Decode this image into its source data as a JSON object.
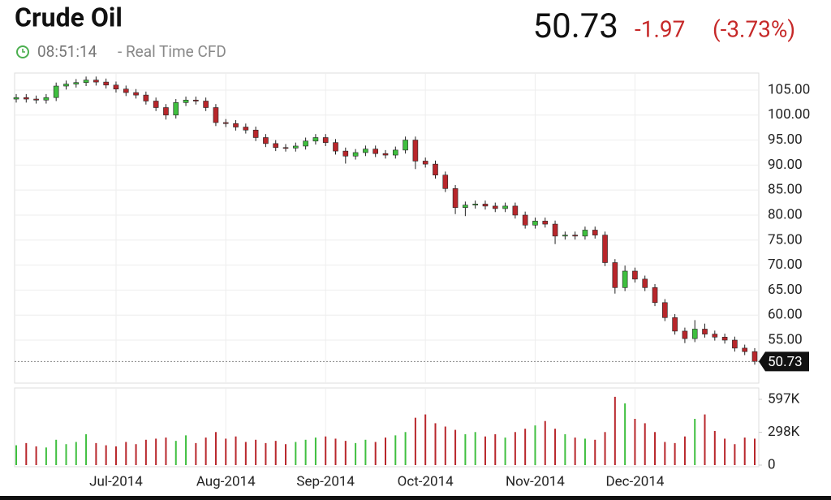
{
  "header": {
    "title": "Crude Oil",
    "time": "08:51:14",
    "source": "- Real Time CFD",
    "price": "50.73",
    "change": "-1.97",
    "change_pct": "(-3.73%)"
  },
  "chart_data": {
    "type": "candlestick",
    "categories": [
      null,
      null,
      null,
      null,
      null,
      null,
      null,
      null,
      null,
      null,
      "Jul-2014",
      null,
      null,
      null,
      null,
      null,
      null,
      null,
      null,
      null,
      null,
      "Aug-2014",
      null,
      null,
      null,
      null,
      null,
      null,
      null,
      null,
      null,
      "Sep-2014",
      null,
      null,
      null,
      null,
      null,
      null,
      null,
      null,
      null,
      "Oct-2014",
      null,
      null,
      null,
      null,
      null,
      null,
      null,
      null,
      null,
      null,
      "Nov-2014",
      null,
      null,
      null,
      null,
      null,
      null,
      null,
      null,
      null,
      "Dec-2014",
      null,
      null,
      null,
      null,
      null,
      null,
      null,
      null,
      null,
      null,
      null,
      null
    ],
    "open": [
      103.2,
      103.5,
      103.2,
      103,
      103.5,
      105.8,
      106.2,
      106.5,
      107,
      106.6,
      106,
      105.2,
      104.5,
      104,
      102.8,
      101.5,
      100,
      102.5,
      103,
      102.8,
      101.5,
      98.5,
      98.3,
      97.6,
      97,
      95.5,
      94.3,
      93.5,
      93.4,
      93.8,
      94.8,
      95.5,
      94.5,
      92.8,
      91.8,
      92.5,
      93.2,
      92.3,
      92,
      93,
      95,
      90.8,
      90.2,
      88,
      85.3,
      81.5,
      82,
      82.2,
      81.8,
      81.3,
      81.8,
      80,
      78,
      78.8,
      78.2,
      75.8,
      76,
      75.8,
      77,
      76,
      70.5,
      65.5,
      68.8,
      67.2,
      65.5,
      62.5,
      59.5,
      56.8,
      55.3,
      57.2,
      56.2,
      55.6,
      55,
      53.4,
      52.7
    ],
    "high": [
      104.2,
      104.2,
      103.9,
      104.2,
      106.5,
      106.9,
      107.2,
      107.7,
      107.7,
      107.3,
      106.7,
      105.9,
      105.2,
      104.7,
      103.5,
      102.2,
      103.2,
      103.7,
      103.7,
      103.5,
      102.2,
      99.2,
      99,
      98.3,
      97.7,
      96.2,
      95,
      94.2,
      94.5,
      95.5,
      96.2,
      96.2,
      95.2,
      93.5,
      93.2,
      93.9,
      93.9,
      93,
      93.7,
      95.7,
      95.7,
      91.5,
      90.9,
      88.7,
      86,
      82.7,
      82.9,
      82.9,
      82.5,
      82.5,
      82.5,
      80.7,
      79.5,
      79.5,
      78.9,
      76.7,
      76.7,
      77.7,
      77.7,
      76.7,
      71.2,
      69.9,
      69.5,
      67.9,
      66.2,
      63.2,
      60.2,
      57.5,
      59,
      58.3,
      56.9,
      56.3,
      55.7,
      54.1,
      53.4
    ],
    "low": [
      102.5,
      102.5,
      102.3,
      102.3,
      102.8,
      105.1,
      105.5,
      105.8,
      105.9,
      105.3,
      104.5,
      103.8,
      103.3,
      102.1,
      100.8,
      99.1,
      99.3,
      101.8,
      102.1,
      100.8,
      97.8,
      97.6,
      96.9,
      96.3,
      94.8,
      93.6,
      92.8,
      92.7,
      92.7,
      93.1,
      94.1,
      93.8,
      92.1,
      90.3,
      91.1,
      91.8,
      91.6,
      91.3,
      91.3,
      92.3,
      89.2,
      89.5,
      87.3,
      84.6,
      80.2,
      79.8,
      81.3,
      81.1,
      80.6,
      80.6,
      79.3,
      77.3,
      77.3,
      77.5,
      74.2,
      75.1,
      75.1,
      75.1,
      75.3,
      69.8,
      64.3,
      64.8,
      66.5,
      64.8,
      61.8,
      58.8,
      56.1,
      54.4,
      54.6,
      55.5,
      54.9,
      54.3,
      52.7,
      52,
      50.1
    ],
    "close": [
      103.5,
      103.2,
      103,
      103.5,
      105.8,
      106.2,
      106.5,
      107,
      106.6,
      106,
      105.2,
      104.5,
      104,
      102.8,
      101.5,
      100,
      102.5,
      103,
      102.8,
      101.5,
      98.5,
      98.3,
      97.6,
      97,
      95.5,
      94.3,
      93.5,
      93.4,
      93.8,
      94.8,
      95.5,
      94.5,
      92.8,
      91.8,
      92.5,
      93.2,
      92.3,
      92,
      93,
      95,
      90.8,
      90.2,
      88,
      85.3,
      81.5,
      82,
      82.2,
      81.8,
      81.3,
      81.8,
      80,
      78,
      78.8,
      78.2,
      75.8,
      76,
      75.8,
      77,
      76,
      70.5,
      65.5,
      68.8,
      67.2,
      65.5,
      62.5,
      59.5,
      56.8,
      55.3,
      57.2,
      56.2,
      55.6,
      55,
      53.4,
      52.7,
      50.73
    ],
    "volume": [
      180000,
      200000,
      170000,
      160000,
      230000,
      190000,
      210000,
      280000,
      200000,
      180000,
      170000,
      210000,
      190000,
      230000,
      240000,
      250000,
      220000,
      270000,
      200000,
      250000,
      300000,
      240000,
      260000,
      210000,
      230000,
      200000,
      220000,
      190000,
      210000,
      230000,
      250000,
      260000,
      240000,
      220000,
      200000,
      230000,
      210000,
      250000,
      270000,
      300000,
      430000,
      460000,
      380000,
      350000,
      320000,
      280000,
      300000,
      260000,
      280000,
      250000,
      300000,
      330000,
      360000,
      400000,
      330000,
      280000,
      250000,
      240000,
      230000,
      300000,
      620000,
      560000,
      420000,
      380000,
      300000,
      210000,
      200000,
      260000,
      420000,
      460000,
      310000,
      240000,
      190000,
      250000,
      240000
    ],
    "up_color": "#3fbf3f",
    "down_color": "#b8262b",
    "ylim": [
      46.4,
      108.4
    ],
    "yticks": [
      {
        "value": 55,
        "label": "55.00"
      },
      {
        "value": 60,
        "label": "60.00"
      },
      {
        "value": 65,
        "label": "65.00"
      },
      {
        "value": 70,
        "label": "70.00"
      },
      {
        "value": 75,
        "label": "75.00"
      },
      {
        "value": 80,
        "label": "80.00"
      },
      {
        "value": 85,
        "label": "85.00"
      },
      {
        "value": 90,
        "label": "90.00"
      },
      {
        "value": 95,
        "label": "95.00"
      },
      {
        "value": 100,
        "label": "100.00"
      },
      {
        "value": 105,
        "label": "105.00"
      }
    ],
    "volume_ylim": [
      0,
      700000
    ],
    "volume_yticks": [
      0,
      {
        "value": 298000,
        "label": "298K"
      },
      {
        "value": 597000,
        "label": "597K"
      }
    ],
    "grid": true
  }
}
